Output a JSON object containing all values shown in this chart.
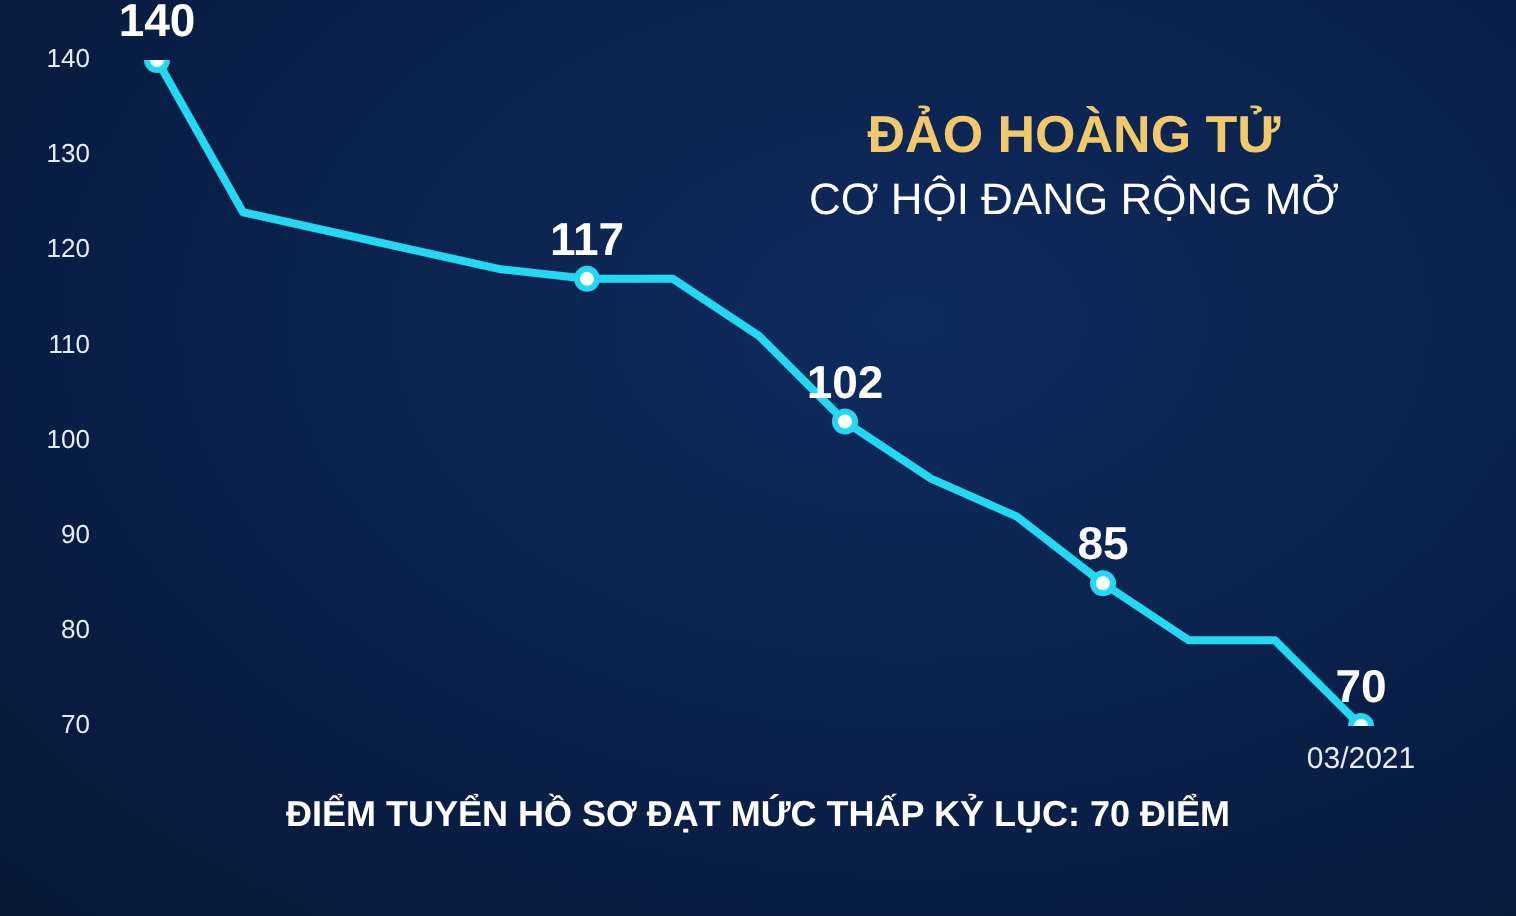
{
  "chart_data": {
    "type": "line",
    "title": "ĐẢO HOÀNG TỬ",
    "subtitle": "CƠ HỘI ĐANG RỘNG MỞ",
    "annotations": [
      "ĐIỂM TUYỂN HỒ SƠ ĐẠT MỨC THẤP KỶ LỤC: 70 ĐIỂM"
    ],
    "categories": [
      null,
      null,
      null,
      null,
      null,
      null,
      null,
      null,
      null,
      null,
      null,
      null,
      null,
      null,
      "03/2021"
    ],
    "series": [
      {
        "color": "#22d8f2",
        "values": [
          140,
          124,
          122,
          120,
          118,
          117,
          117,
          111,
          102,
          96,
          92,
          85,
          79,
          79,
          70
        ],
        "value_labels": [
          "140",
          null,
          null,
          null,
          null,
          "117",
          null,
          null,
          "102",
          null,
          null,
          "85",
          null,
          null,
          "70"
        ]
      }
    ],
    "ylim": [
      70,
      140
    ],
    "yticks": [
      70,
      80,
      90,
      100,
      110,
      120,
      130,
      140
    ],
    "grid": false
  }
}
